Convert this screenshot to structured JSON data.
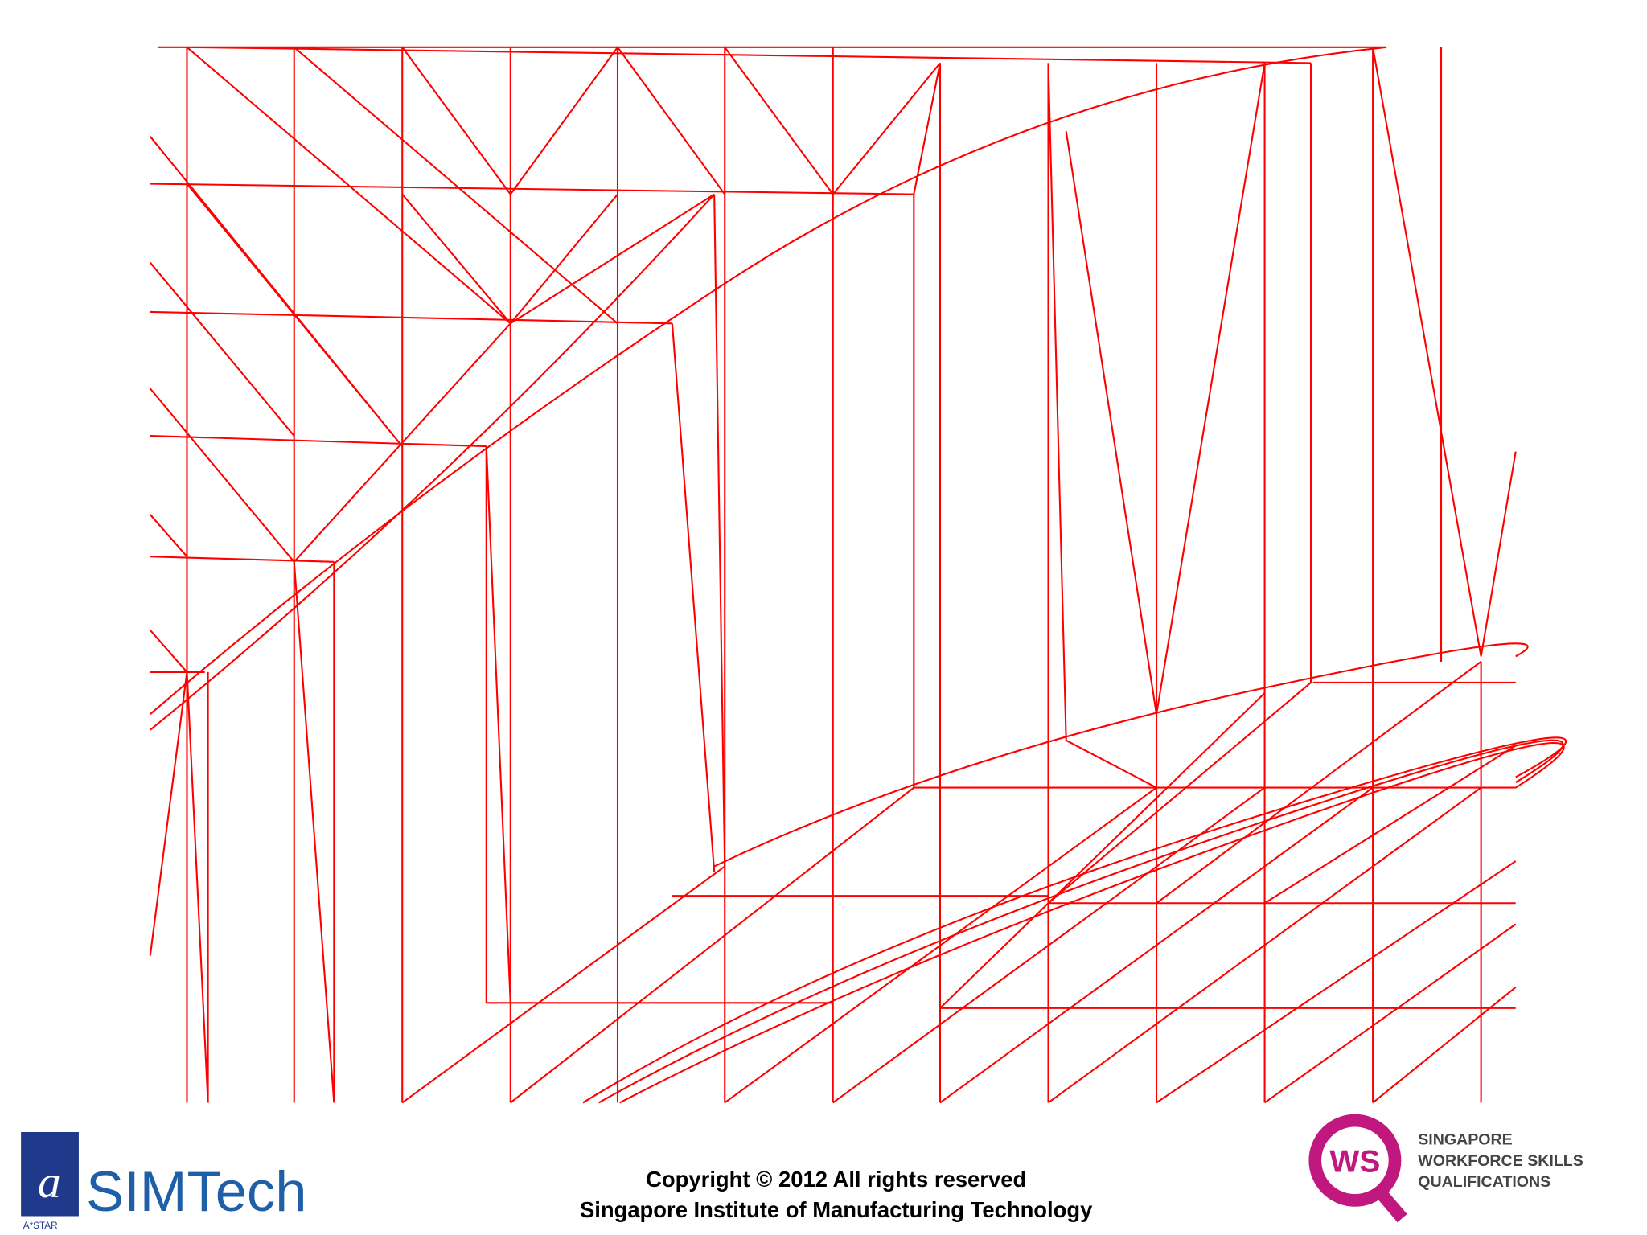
{
  "footer": {
    "copyright": "Copyright © 2012 All rights reserved",
    "institute": "Singapore Institute of Manufacturing Technology"
  },
  "logos": {
    "left": {
      "name": "SIMTech",
      "sub": "A*STAR"
    },
    "right": {
      "mark": "WS",
      "lines": [
        "SINGAPORE",
        "WORKFORCE SKILLS",
        "QUALIFICATIONS"
      ]
    }
  }
}
